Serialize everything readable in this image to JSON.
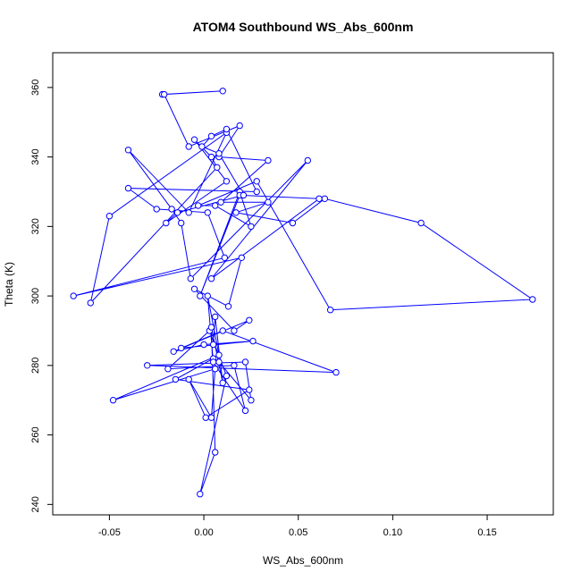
{
  "chart_data": {
    "type": "line",
    "title": "ATOM4 Southbound WS_Abs_600nm",
    "xlabel": "WS_Abs_600nm",
    "ylabel": "Theta (K)",
    "xlim": [
      -0.08,
      0.185
    ],
    "ylim": [
      237,
      370
    ],
    "xticks": [
      -0.05,
      0.0,
      0.05,
      0.1,
      0.15
    ],
    "xtick_labels": [
      "-0.05",
      "0.00",
      "0.05",
      "0.10",
      "0.15"
    ],
    "yticks": [
      240,
      260,
      280,
      300,
      320,
      340,
      360
    ],
    "ytick_labels": [
      "240",
      "260",
      "280",
      "300",
      "320",
      "340",
      "360"
    ],
    "grid": false,
    "series": [
      {
        "color": "#0000ff",
        "marker": "open-circle",
        "x": [
          -0.022,
          0.01,
          -0.021,
          -0.008,
          0.019,
          0.008,
          0.034,
          0.009,
          0.034,
          0.017,
          0.047,
          0.064,
          0.115,
          0.174,
          0.067,
          0.028,
          -0.003,
          0.006,
          0.025,
          0.019,
          -0.002,
          0.019,
          0.061,
          0.004,
          0.055,
          -0.007,
          -0.012,
          -0.017,
          -0.04,
          -0.008,
          0.012,
          -0.05,
          -0.06,
          0.007,
          0.004,
          -0.005,
          0.012,
          -0.02,
          -0.014,
          0.021,
          0.008,
          -0.001,
          0.004,
          0.012,
          0.028,
          -0.04,
          -0.025,
          0.002,
          0.011,
          -0.069,
          0.02,
          0.013,
          -0.005,
          0.016,
          0.024,
          -0.016,
          0.0,
          0.026,
          -0.012,
          0.01,
          0.07,
          -0.03,
          0.022,
          0.025,
          0.008,
          0.005,
          -0.015,
          0.024,
          0.001,
          -0.008,
          0.004,
          0.006,
          -0.048,
          0.008,
          0.002,
          0.005,
          0.022,
          0.016,
          -0.019,
          0.003,
          0.012,
          -0.002,
          0.006,
          0.004,
          0.01,
          0.006,
          0.005
        ],
        "y": [
          358,
          359,
          358,
          343,
          349,
          340,
          339,
          327,
          327,
          324,
          321,
          328,
          321,
          299,
          296,
          333,
          326,
          326,
          320,
          330,
          300,
          329,
          328,
          305,
          339,
          305,
          321,
          325,
          342,
          324,
          347,
          323,
          298,
          337,
          340,
          345,
          333,
          321,
          324,
          329,
          341,
          343,
          346,
          348,
          330,
          331,
          325,
          324,
          311,
          300,
          311,
          297,
          302,
          290,
          293,
          284,
          286,
          287,
          285,
          290,
          278,
          280,
          281,
          270,
          281,
          282,
          276,
          273,
          265,
          276,
          265,
          279,
          270,
          283,
          300,
          281,
          267,
          280,
          279,
          290,
          277,
          243,
          255,
          291,
          275,
          294,
          286
        ]
      }
    ]
  }
}
